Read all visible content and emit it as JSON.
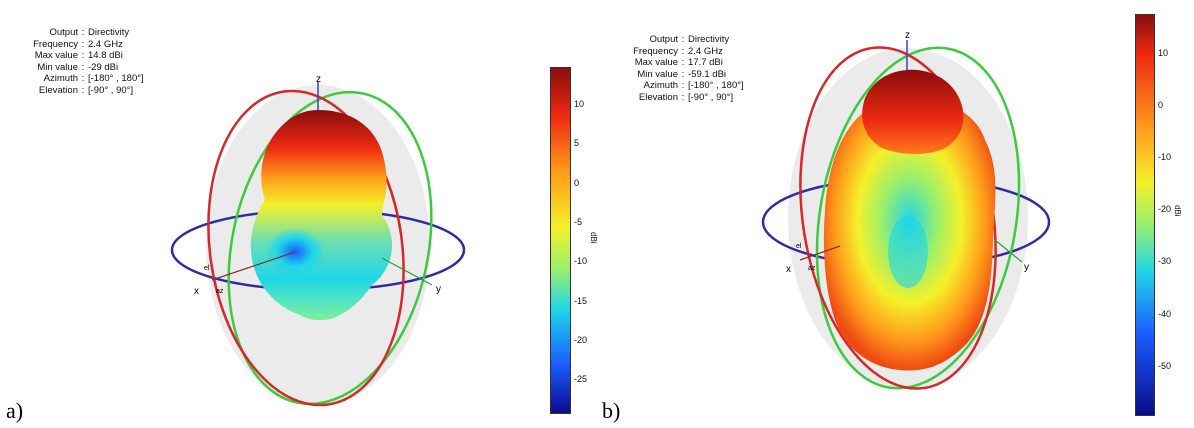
{
  "colors": {
    "elevation_red": "#d62828",
    "elevation_green": "#3bcb3b",
    "azimuth_blue": "#2c2ca8",
    "axis_blue": "#3d3dd6",
    "sphere_fill": "#ebebeb",
    "colormap": [
      "#0b0b8a",
      "#1a5cff",
      "#1fd6e8",
      "#9cf06a",
      "#f5f02a",
      "#ff9a1a",
      "#ee2a12",
      "#8a0d0d"
    ]
  },
  "chart_data": [
    {
      "type": "3d-radiation-pattern",
      "panel_label": "a)",
      "info": [
        {
          "key": "Output",
          "value": "Directivity"
        },
        {
          "key": "Frequency",
          "value": "2.4 GHz"
        },
        {
          "key": "Max value",
          "value": "14.8 dBi"
        },
        {
          "key": "Min value",
          "value": "-29 dBi"
        },
        {
          "key": "Azimuth",
          "value": "[-180° , 180°]"
        },
        {
          "key": "Elevation",
          "value": "[-90° , 90°]"
        }
      ],
      "colorbar": {
        "min": -29,
        "max": 14.8,
        "ticks": [
          10,
          5,
          0,
          -5,
          -10,
          -15,
          -20,
          -25
        ],
        "unit": "dBi"
      },
      "axis_labels": {
        "x": "x",
        "y": "y",
        "z": "z",
        "az": "az",
        "el": "el"
      }
    },
    {
      "type": "3d-radiation-pattern",
      "panel_label": "b)",
      "info": [
        {
          "key": "Output",
          "value": "Directivity"
        },
        {
          "key": "Frequency",
          "value": "2.4 GHz"
        },
        {
          "key": "Max value",
          "value": "17.7 dBi"
        },
        {
          "key": "Min value",
          "value": "-59.1 dBi"
        },
        {
          "key": "Azimuth",
          "value": "[-180° , 180°]"
        },
        {
          "key": "Elevation",
          "value": "[-90° , 90°]"
        }
      ],
      "colorbar": {
        "min": -59.1,
        "max": 17.7,
        "ticks": [
          10,
          0,
          -10,
          -20,
          -30,
          -40,
          -50
        ],
        "unit": "dBi"
      },
      "axis_labels": {
        "x": "x",
        "y": "y",
        "z": "z",
        "az": "az",
        "el": "el"
      }
    }
  ]
}
